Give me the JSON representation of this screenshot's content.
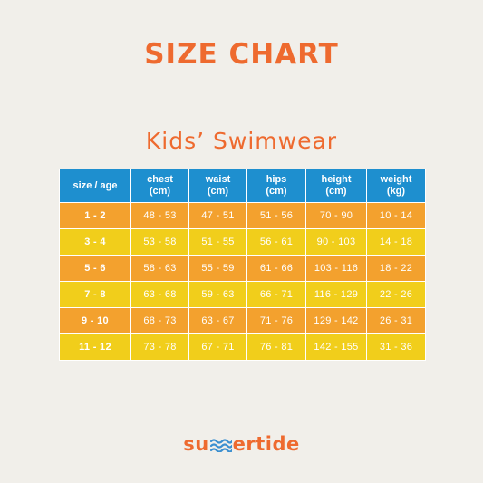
{
  "title": "SIZE CHART",
  "subtitle": "Kids’ Swimwear",
  "colors": {
    "background": "#f1efea",
    "accent": "#ee6a2f",
    "header": "#1e8fcf",
    "row_orange": "#f3a12e",
    "row_yellow": "#f1ce1b",
    "brand_wave": "#3b8fd0"
  },
  "table": {
    "headers": [
      [
        "size / age"
      ],
      [
        "chest",
        "(cm)"
      ],
      [
        "waist",
        "(cm)"
      ],
      [
        "hips",
        "(cm)"
      ],
      [
        "height",
        "(cm)"
      ],
      [
        "weight",
        "(kg)"
      ]
    ],
    "rows": [
      [
        "1 - 2",
        "48 - 53",
        "47 - 51",
        "51 - 56",
        "70 - 90",
        "10 - 14"
      ],
      [
        "3 - 4",
        "53 - 58",
        "51 - 55",
        "56 - 61",
        "90 - 103",
        "14 - 18"
      ],
      [
        "5 - 6",
        "58 - 63",
        "55 - 59",
        "61 - 66",
        "103 - 116",
        "18 - 22"
      ],
      [
        "7 - 8",
        "63 - 68",
        "59 - 63",
        "66 - 71",
        "116 - 129",
        "22 - 26"
      ],
      [
        "9 - 10",
        "68 - 73",
        "63 - 67",
        "71 - 76",
        "129 - 142",
        "26 - 31"
      ],
      [
        "11 - 12",
        "73 - 78",
        "67 - 71",
        "76 - 81",
        "142 - 155",
        "31 - 36"
      ]
    ]
  },
  "brand": {
    "prefix": "su",
    "suffix": "ertide",
    "icon": "wave-icon"
  }
}
